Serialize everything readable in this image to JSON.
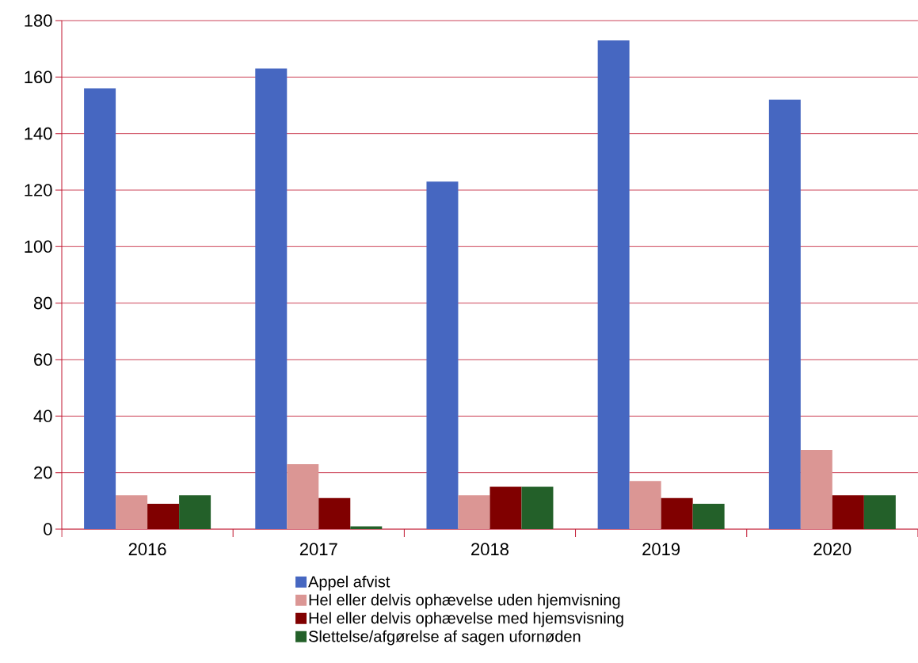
{
  "chart_data": {
    "type": "bar",
    "categories": [
      "2016",
      "2017",
      "2018",
      "2019",
      "2020"
    ],
    "series": [
      {
        "name": "Appel afvist",
        "color": "#4667c1",
        "values": [
          156,
          163,
          123,
          173,
          152
        ]
      },
      {
        "name": "Hel eller delvis ophævelse uden hjemvisning",
        "color": "#db9694",
        "values": [
          12,
          23,
          12,
          17,
          28
        ]
      },
      {
        "name": "Hel eller delvis ophævelse med hjemsvisning",
        "color": "#800000",
        "values": [
          9,
          11,
          15,
          11,
          12
        ]
      },
      {
        "name": "Slettelse/afgørelse af sagen ufornøden",
        "color": "#236029",
        "values": [
          12,
          1,
          15,
          9,
          12
        ]
      }
    ],
    "ylim": [
      0,
      180
    ],
    "yticks": [
      0,
      20,
      40,
      60,
      80,
      100,
      120,
      140,
      160,
      180
    ],
    "grid": "y",
    "legend": "bottom"
  }
}
